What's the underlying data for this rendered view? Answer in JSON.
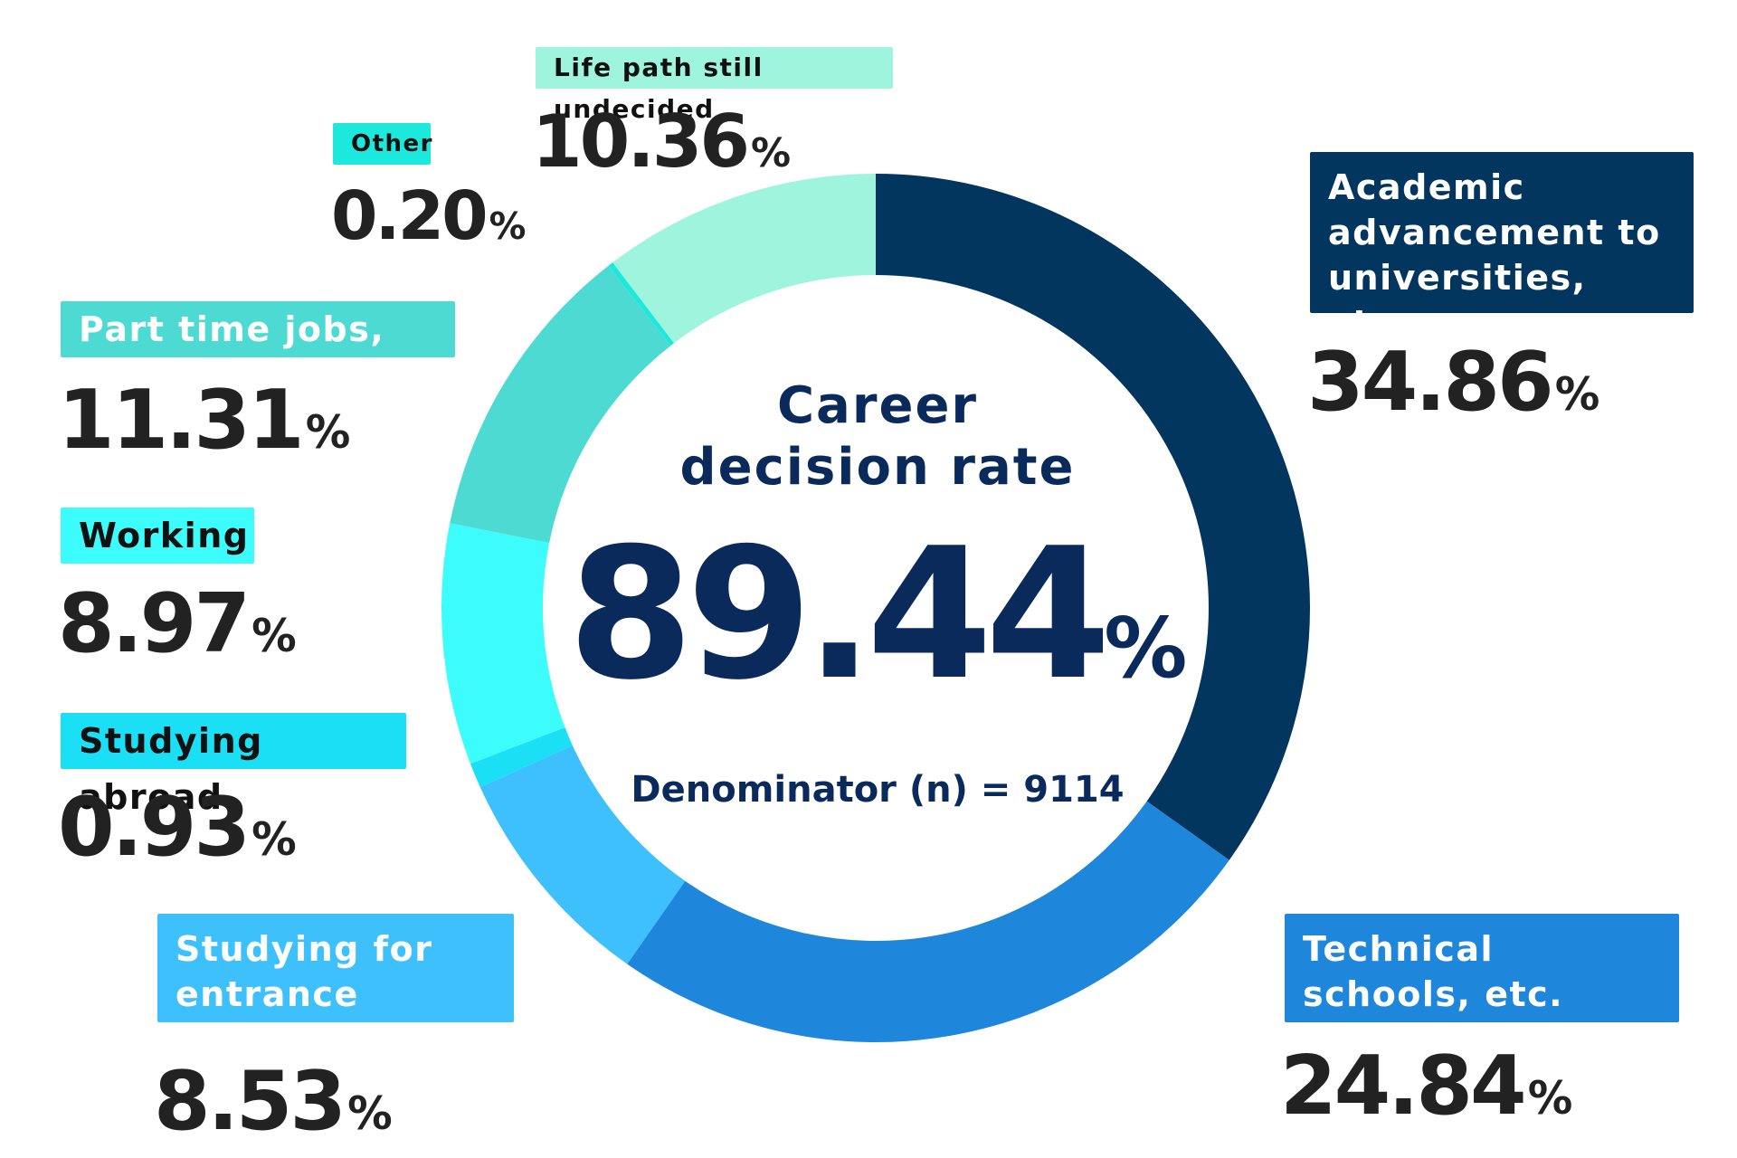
{
  "center": {
    "title_line1": "Career",
    "title_line2": "decision rate",
    "value": "89.44",
    "value_unit": "%",
    "denominator": "Denominator (n) = 9114"
  },
  "percent_sign": "%",
  "chart_data": {
    "type": "pie",
    "variant": "donut",
    "title": "Career decision rate",
    "center_value": 89.44,
    "denominator_n": 9114,
    "slices": [
      {
        "label": "Academic advancement to universities, etc.",
        "value": 34.86,
        "display": "34.86",
        "color": "#02365f"
      },
      {
        "label": "Technical schools, etc.",
        "value": 24.84,
        "display": "24.84",
        "color": "#1e87dc"
      },
      {
        "label": "Studying for entrance exams",
        "value": 8.53,
        "display": "8.53",
        "color": "#3ec0fc"
      },
      {
        "label": "Studying abroad",
        "value": 0.93,
        "display": "0.93",
        "color": "#1adff5"
      },
      {
        "label": "Working",
        "value": 8.97,
        "display": "8.97",
        "color": "#3dfcfc"
      },
      {
        "label": "Part time jobs, etc.",
        "value": 11.31,
        "display": "11.31",
        "color": "#4ddad2"
      },
      {
        "label": "Other",
        "value": 0.2,
        "display": "0.20",
        "color": "#1ce8dc"
      },
      {
        "label": "Life path still undecided",
        "value": 10.36,
        "display": "10.36",
        "color": "#9ef4dc"
      }
    ]
  }
}
